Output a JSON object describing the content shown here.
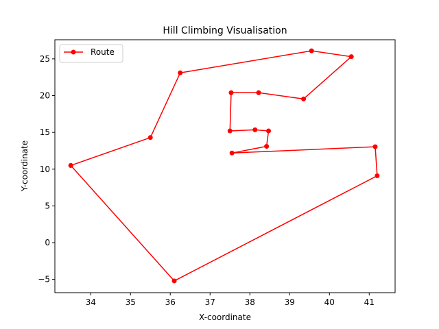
{
  "chart_data": {
    "type": "line",
    "title": "Hill Climbing Visualisation",
    "xlabel": "X-coordinate",
    "ylabel": "Y-coordinate",
    "xlim": [
      33.1,
      41.65
    ],
    "ylim": [
      -6.8,
      27.6
    ],
    "xticks": [
      34,
      35,
      36,
      37,
      38,
      39,
      40,
      41
    ],
    "yticks": [
      -5,
      0,
      5,
      10,
      15,
      20,
      25
    ],
    "grid": false,
    "legend_position": "top-left",
    "series": [
      {
        "name": "Route",
        "color": "#ff0000",
        "marker": "circle",
        "points": [
          [
            33.5,
            10.5
          ],
          [
            35.5,
            14.3
          ],
          [
            36.25,
            23.1
          ],
          [
            39.55,
            26.1
          ],
          [
            40.55,
            25.3
          ],
          [
            39.35,
            19.55
          ],
          [
            38.22,
            20.4
          ],
          [
            37.53,
            20.4
          ],
          [
            37.5,
            15.2
          ],
          [
            38.13,
            15.35
          ],
          [
            38.47,
            15.2
          ],
          [
            38.42,
            13.1
          ],
          [
            37.55,
            12.2
          ],
          [
            41.15,
            13.05
          ],
          [
            41.2,
            9.1
          ],
          [
            36.1,
            -5.2
          ],
          [
            33.5,
            10.5
          ]
        ]
      }
    ]
  }
}
